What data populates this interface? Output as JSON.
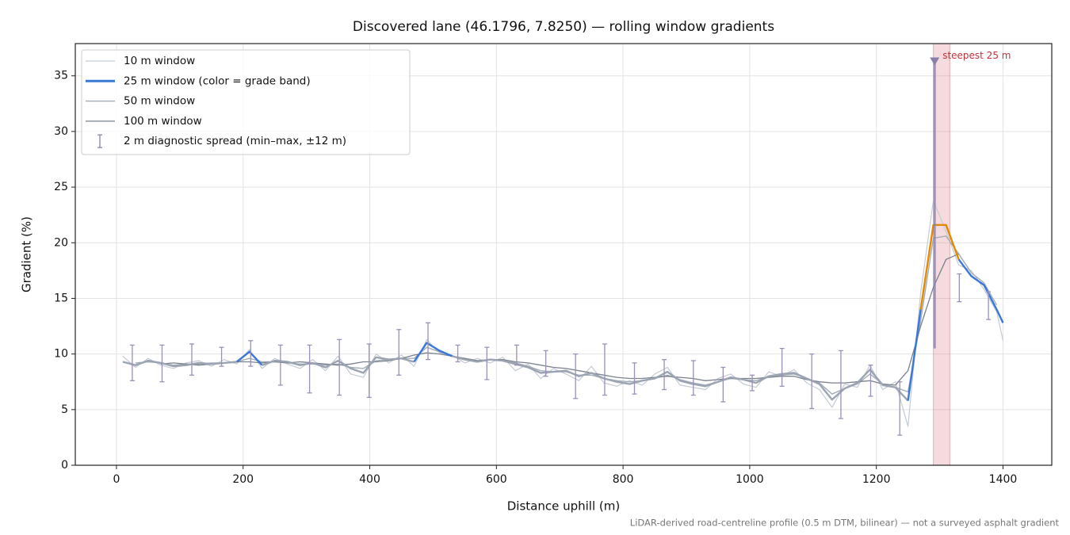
{
  "chart_data": {
    "type": "line",
    "title": "Discovered lane (46.1796, 7.8250) — rolling window gradients",
    "x_label": "Distance uphill (m)",
    "y_label": "Gradient (%)",
    "note": "LiDAR-derived road-centreline profile (0.5 m DTM, bilinear) — not a surveyed asphalt gradient",
    "xlim": [
      -65,
      1477
    ],
    "ylim": [
      0,
      37.9
    ],
    "xticks": [
      0,
      200,
      400,
      600,
      800,
      1000,
      1200,
      1400
    ],
    "yticks": [
      0,
      5,
      10,
      15,
      20,
      25,
      30,
      35
    ],
    "grid": true,
    "legend": "upper left",
    "x": [
      10,
      30,
      50,
      70,
      90,
      110,
      130,
      150,
      170,
      190,
      210,
      230,
      250,
      270,
      290,
      310,
      330,
      350,
      370,
      390,
      410,
      430,
      450,
      470,
      490,
      510,
      530,
      550,
      570,
      590,
      610,
      630,
      650,
      670,
      690,
      710,
      730,
      750,
      770,
      790,
      810,
      830,
      850,
      870,
      890,
      910,
      930,
      950,
      970,
      990,
      1010,
      1030,
      1050,
      1070,
      1090,
      1110,
      1130,
      1150,
      1170,
      1190,
      1210,
      1230,
      1250,
      1270,
      1290,
      1310,
      1330,
      1350,
      1370,
      1390,
      1400
    ],
    "series": [
      {
        "name": "10 m window",
        "color": "#c3cbd5",
        "width": 1.2,
        "values": [
          9.8,
          8.8,
          9.6,
          9.0,
          8.7,
          9.2,
          9.4,
          8.9,
          9.5,
          9.1,
          10.4,
          8.7,
          9.6,
          9.1,
          8.7,
          9.5,
          8.5,
          9.8,
          8.2,
          7.9,
          10.0,
          9.2,
          9.9,
          8.9,
          11.3,
          10.1,
          9.9,
          9.2,
          9.6,
          9.2,
          9.7,
          8.5,
          9.1,
          7.8,
          8.7,
          8.2,
          7.6,
          8.9,
          7.4,
          7.1,
          7.6,
          7.2,
          8.2,
          8.8,
          7.2,
          7.0,
          6.8,
          7.8,
          8.2,
          7.3,
          7.0,
          8.4,
          8.0,
          8.6,
          7.4,
          6.8,
          5.2,
          7.3,
          7.0,
          9.0,
          6.8,
          7.5,
          3.5,
          15.5,
          23.8,
          21.0,
          18.0,
          17.5,
          15.8,
          13.8,
          11.2
        ]
      },
      {
        "name": "25 m window (color = grade band)",
        "color": "#9aa4b2",
        "width": 2.4,
        "bands": [
          {
            "min": 10,
            "color": "#3a78d8"
          },
          {
            "min": 20,
            "color": "#e08a00"
          }
        ],
        "values": [
          9.3,
          9.0,
          9.4,
          9.2,
          8.9,
          9.0,
          9.2,
          9.1,
          9.2,
          9.3,
          10.2,
          9.0,
          9.4,
          9.3,
          9.0,
          9.2,
          8.8,
          9.4,
          8.7,
          8.3,
          9.7,
          9.5,
          9.6,
          9.3,
          11.0,
          10.3,
          9.8,
          9.5,
          9.3,
          9.5,
          9.4,
          9.1,
          8.8,
          8.3,
          8.4,
          8.5,
          8.0,
          8.3,
          7.8,
          7.5,
          7.3,
          7.6,
          7.8,
          8.4,
          7.6,
          7.3,
          7.1,
          7.5,
          7.9,
          7.7,
          7.4,
          8.0,
          8.2,
          8.3,
          7.8,
          7.3,
          5.9,
          6.9,
          7.4,
          8.6,
          7.2,
          7.0,
          5.8,
          14.0,
          21.6,
          21.6,
          18.5,
          17.0,
          16.2,
          14.0,
          12.8
        ]
      },
      {
        "name": "50 m window",
        "color": "#a3acb8",
        "width": 1.4,
        "values": [
          null,
          9.2,
          9.3,
          9.2,
          9.0,
          9.1,
          9.1,
          9.2,
          9.2,
          9.3,
          9.6,
          9.3,
          9.3,
          9.2,
          9.1,
          9.1,
          9.0,
          9.1,
          8.8,
          8.7,
          9.4,
          9.5,
          9.6,
          9.6,
          10.6,
          10.2,
          9.8,
          9.6,
          9.4,
          9.5,
          9.4,
          9.2,
          8.9,
          8.5,
          8.4,
          8.4,
          8.1,
          8.1,
          7.8,
          7.6,
          7.5,
          7.6,
          7.8,
          8.1,
          7.7,
          7.4,
          7.2,
          7.5,
          7.8,
          7.7,
          7.6,
          8.0,
          8.1,
          8.2,
          7.8,
          7.4,
          6.4,
          6.9,
          7.3,
          8.2,
          7.3,
          7.0,
          6.6,
          13.0,
          20.4,
          20.6,
          19.0,
          17.3,
          16.4,
          14.4,
          null
        ]
      },
      {
        "name": "100 m window",
        "color": "#7a828e",
        "width": 1.3,
        "values": [
          null,
          null,
          null,
          9.1,
          9.2,
          9.1,
          9.0,
          9.1,
          9.2,
          9.3,
          9.3,
          9.2,
          9.3,
          9.2,
          9.3,
          9.2,
          9.1,
          9.0,
          9.1,
          9.3,
          9.3,
          9.4,
          9.6,
          9.9,
          10.1,
          10.0,
          9.8,
          9.6,
          9.4,
          9.5,
          9.5,
          9.3,
          9.2,
          9.0,
          8.8,
          8.7,
          8.5,
          8.3,
          8.1,
          7.9,
          7.8,
          7.8,
          7.9,
          8.0,
          7.9,
          7.8,
          7.6,
          7.7,
          7.8,
          7.8,
          7.8,
          7.9,
          8.0,
          8.0,
          7.7,
          7.5,
          7.4,
          7.4,
          7.5,
          7.6,
          7.3,
          7.2,
          8.5,
          12.5,
          16.0,
          18.5,
          19.0,
          null,
          null,
          null,
          null
        ]
      }
    ],
    "errorbars": {
      "name": "2 m diagnostic spread (min–max, ±12 m)",
      "color": "#9a90b8",
      "x": [
        25,
        72,
        119,
        166,
        212,
        259,
        305,
        352,
        399,
        446,
        492,
        539,
        585,
        632,
        678,
        725,
        771,
        818,
        865,
        911,
        958,
        1004,
        1051,
        1098,
        1144,
        1191,
        1237,
        1331,
        1377
      ],
      "low": [
        7.6,
        7.5,
        8.1,
        8.9,
        8.9,
        7.2,
        6.5,
        6.3,
        6.1,
        8.1,
        9.5,
        9.3,
        7.7,
        9.0,
        8.0,
        6.0,
        6.3,
        6.4,
        6.8,
        6.3,
        5.7,
        6.7,
        7.1,
        5.1,
        4.2,
        6.2,
        2.7,
        14.7,
        13.1
      ],
      "high": [
        10.8,
        10.8,
        10.9,
        10.6,
        11.2,
        10.8,
        10.8,
        11.3,
        10.9,
        12.2,
        12.8,
        10.8,
        10.6,
        10.8,
        10.3,
        10.0,
        10.9,
        9.2,
        9.5,
        9.4,
        8.8,
        8.1,
        10.5,
        10.0,
        10.3,
        9.0,
        7.5,
        17.2,
        15.6
      ]
    },
    "steepest": {
      "label": "steepest 25 m",
      "x0": 1290,
      "x1": 1316,
      "x": 1292,
      "low": 10.5,
      "high": 36.3,
      "color": "#d9707a"
    }
  }
}
